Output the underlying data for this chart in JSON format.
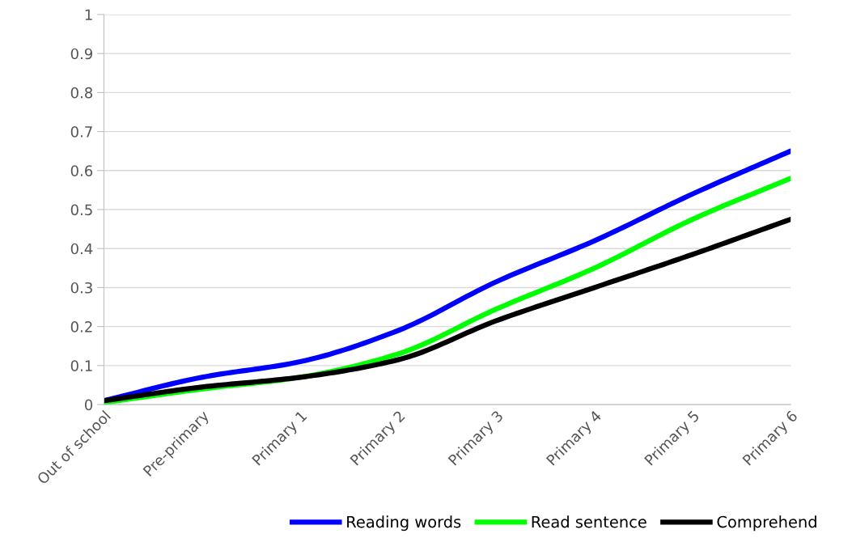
{
  "chart_data": {
    "type": "line",
    "categories": [
      "Out of school",
      "Pre-primary",
      "Primary 1",
      "Primary 2",
      "Primary 3",
      "Primary 4",
      "Primary 5",
      "Primary 6"
    ],
    "series": [
      {
        "name": "Reading words",
        "color": "#0000ff",
        "values": [
          0.01,
          0.07,
          0.11,
          0.19,
          0.315,
          0.42,
          0.54,
          0.65
        ]
      },
      {
        "name": "Read sentence",
        "color": "#00ff00",
        "values": [
          0.005,
          0.04,
          0.07,
          0.13,
          0.245,
          0.35,
          0.475,
          0.58
        ]
      },
      {
        "name": "Comprehend",
        "color": "#000000",
        "values": [
          0.01,
          0.045,
          0.07,
          0.115,
          0.215,
          0.3,
          0.385,
          0.475
        ]
      }
    ],
    "ylim": [
      0,
      1
    ],
    "yticks": [
      0,
      0.1,
      0.2,
      0.3,
      0.4,
      0.5,
      0.6,
      0.7,
      0.8,
      0.9,
      1
    ],
    "grid": "y",
    "legend": "bottom right",
    "marker": "none",
    "line_style": "solid"
  }
}
